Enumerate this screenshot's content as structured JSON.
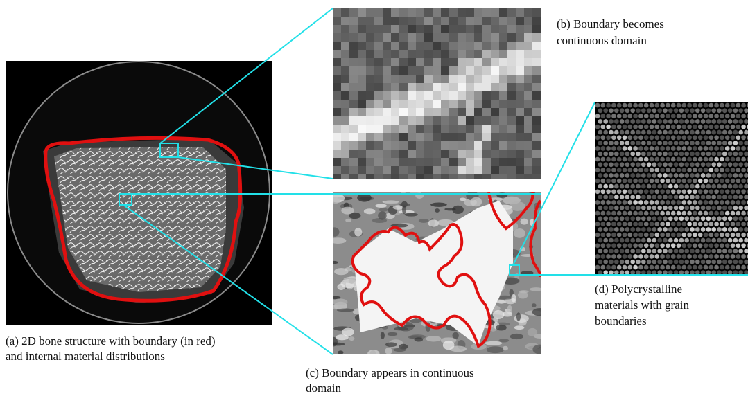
{
  "panels": [
    {
      "caption": [
        "(a) 2D bone structure with boundary (in red)",
        "and internal material distributions"
      ]
    },
    {
      "caption": [
        "(b) Boundary becomes",
        "continuous domain"
      ]
    },
    {
      "caption": [
        "(c) Boundary appears in continuous",
        "domain"
      ]
    },
    {
      "caption": [
        "(d) Polycrystalline",
        "materials with grain",
        "boundaries"
      ]
    }
  ]
}
